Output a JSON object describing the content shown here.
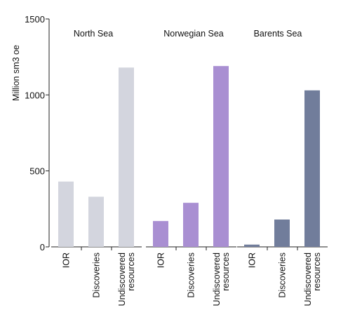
{
  "chart_data": {
    "type": "bar",
    "ylabel": "Million sm3 oe",
    "ylim": [
      0,
      1500
    ],
    "yticks": [
      0,
      500,
      1000,
      1500
    ],
    "grid": false,
    "legend": "none",
    "categories": [
      {
        "lines": [
          "IOR"
        ]
      },
      {
        "lines": [
          "Discoveries"
        ]
      },
      {
        "lines": [
          "Undiscovered",
          "resources"
        ]
      }
    ],
    "series": [
      {
        "name": "North Sea",
        "values": [
          430,
          330,
          1180
        ],
        "color": "#d3d5de"
      },
      {
        "name": "Norwegian Sea",
        "values": [
          170,
          290,
          1190
        ],
        "color": "#a98fd2"
      },
      {
        "name": "Barents Sea",
        "values": [
          15,
          180,
          1030
        ],
        "color": "#717d9b"
      }
    ]
  }
}
